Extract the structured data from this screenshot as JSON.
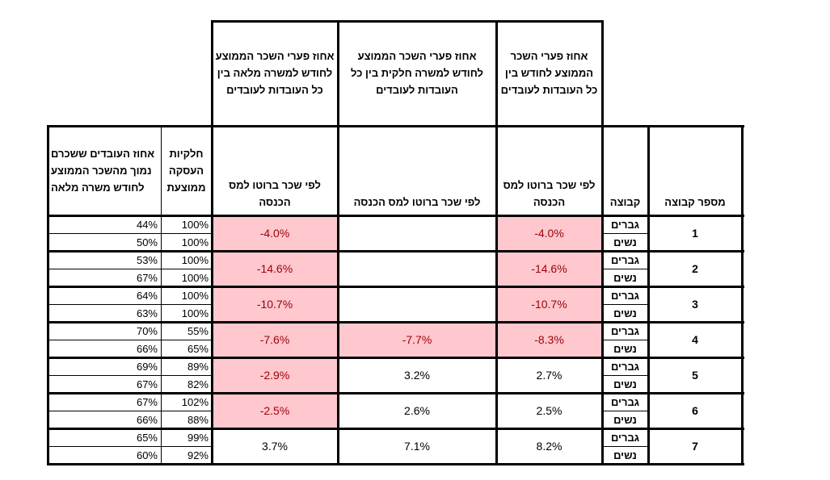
{
  "top_headers": {
    "fulltime_gap": "אחוז פערי השכר הממוצע לחודש למשרה מלאה בין כל העובדות לעובדים",
    "parttime_gap": "אחוז פערי השכר הממוצע לחודש למשרה חלקית בין כל העובדות לעובדים",
    "monthly_gap": "אחוז פערי השכר הממוצע לחודש בין כל העובדות לעובדים"
  },
  "col_headers": {
    "pct_below_avg": "אחוז העובדים ששכרם נמוך מהשכר הממוצע לחודש משרה מלאה",
    "avg_employment": "חלקיות העסקה ממוצעת",
    "gross_fulltime": "לפי שכר ברוטו למס הכנסה",
    "gross_parttime": "לפי שכר ברוטו למס הכנסה",
    "gross_monthly": "לפי שכר ברוטו למס הכנסה",
    "group": "קבוצה",
    "group_number": "מספר קבוצה"
  },
  "gender_labels": {
    "men": "גברים",
    "women": "נשים"
  },
  "groups": [
    {
      "number": "1",
      "men_below": "44%",
      "women_below": "50%",
      "men_emp": "100%",
      "women_emp": "100%",
      "fulltime": "-4.0%",
      "parttime": "",
      "monthly": "-4.0%",
      "fulltime_hl": true,
      "parttime_hl": false,
      "monthly_hl": true
    },
    {
      "number": "2",
      "men_below": "53%",
      "women_below": "67%",
      "men_emp": "100%",
      "women_emp": "100%",
      "fulltime": "-14.6%",
      "parttime": "",
      "monthly": "-14.6%",
      "fulltime_hl": true,
      "parttime_hl": false,
      "monthly_hl": true
    },
    {
      "number": "3",
      "men_below": "64%",
      "women_below": "63%",
      "men_emp": "100%",
      "women_emp": "100%",
      "fulltime": "-10.7%",
      "parttime": "",
      "monthly": "-10.7%",
      "fulltime_hl": true,
      "parttime_hl": false,
      "monthly_hl": true
    },
    {
      "number": "4",
      "men_below": "70%",
      "women_below": "66%",
      "men_emp": "55%",
      "women_emp": "65%",
      "fulltime": "-7.6%",
      "parttime": "-7.7%",
      "monthly": "-8.3%",
      "fulltime_hl": true,
      "parttime_hl": true,
      "monthly_hl": true
    },
    {
      "number": "5",
      "men_below": "69%",
      "women_below": "67%",
      "men_emp": "89%",
      "women_emp": "82%",
      "fulltime": "-2.9%",
      "parttime": "3.2%",
      "monthly": "2.7%",
      "fulltime_hl": true,
      "parttime_hl": false,
      "monthly_hl": false
    },
    {
      "number": "6",
      "men_below": "67%",
      "women_below": "66%",
      "men_emp": "102%",
      "women_emp": "88%",
      "fulltime": "-2.5%",
      "parttime": "2.6%",
      "monthly": "2.5%",
      "fulltime_hl": true,
      "parttime_hl": false,
      "monthly_hl": false
    },
    {
      "number": "7",
      "men_below": "65%",
      "women_below": "60%",
      "men_emp": "99%",
      "women_emp": "92%",
      "fulltime": "3.7%",
      "parttime": "7.1%",
      "monthly": "8.2%",
      "fulltime_hl": false,
      "parttime_hl": false,
      "monthly_hl": false
    }
  ]
}
